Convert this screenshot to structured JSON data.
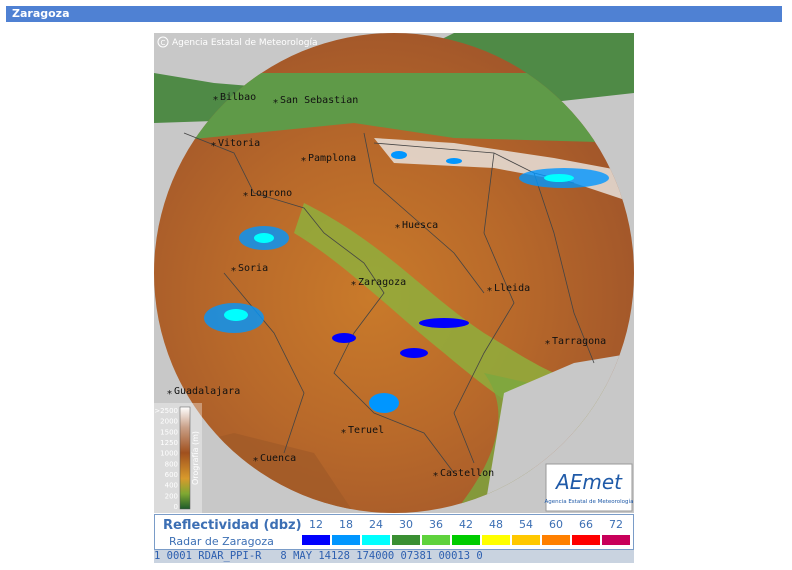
{
  "header": {
    "title": "Zaragoza"
  },
  "map": {
    "copyright": "Agencia Estatal de Meteorología",
    "cities": [
      "Bilbao",
      "San Sebastian",
      "Vitoria",
      "Pamplona",
      "Logrono",
      "Huesca",
      "Soria",
      "Zaragoza",
      "Lleida",
      "Tarragona",
      "Guadalajara",
      "Teruel",
      "Cuenca",
      "Castellon"
    ],
    "orography": {
      "title": "Orografía (m)",
      "ticks": [
        ">2500",
        2000,
        1500,
        1250,
        1000,
        800,
        600,
        400,
        200,
        0
      ]
    },
    "logo": {
      "name": "AEmet",
      "subtitle": "Agencia Estatal de Meteorología"
    }
  },
  "legend": {
    "title": "Reflectividad (dbz)",
    "subtitle": "Radar de Zaragoza",
    "levels": [
      {
        "value": 12,
        "color": "#0000fe"
      },
      {
        "value": 18,
        "color": "#0096ff"
      },
      {
        "value": 24,
        "color": "#00ffff"
      },
      {
        "value": 30,
        "color": "#3a8f32"
      },
      {
        "value": 36,
        "color": "#5fd23c"
      },
      {
        "value": 42,
        "color": "#00cc00"
      },
      {
        "value": 48,
        "color": "#ffff00"
      },
      {
        "value": 54,
        "color": "#ffc800"
      },
      {
        "value": 60,
        "color": "#ff8000"
      },
      {
        "value": 66,
        "color": "#ff0000"
      },
      {
        "value": 72,
        "color": "#c8005a"
      }
    ]
  },
  "footer": {
    "status": "1 0001 RDAR_PPI-R   8 MAY 14128 174000 07381 00013 0"
  }
}
